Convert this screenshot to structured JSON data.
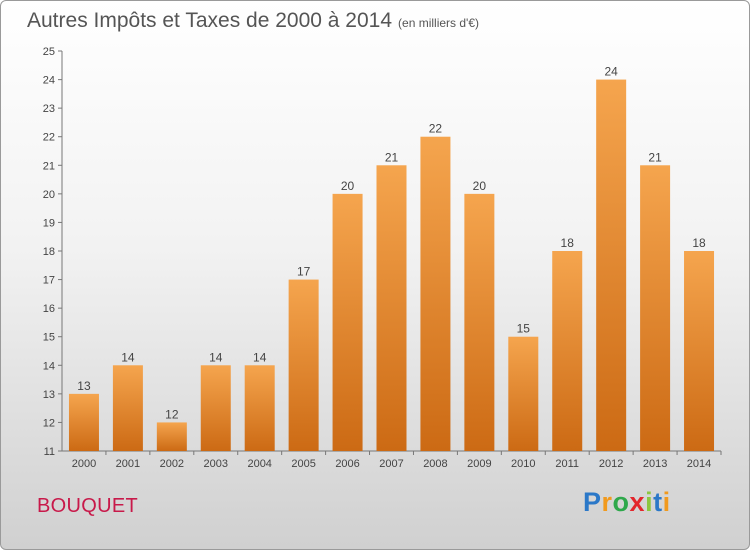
{
  "title": "Autres Impôts et Taxes de 2000 à 2014",
  "subtitle": "(en milliers d'€)",
  "commune": "BOUQUET",
  "logo": {
    "letters": [
      "P",
      "r",
      "o",
      "x",
      "i",
      "t",
      "i"
    ],
    "colors": [
      "#2b78c8",
      "#f19a1e",
      "#2ea84b",
      "#e3262c",
      "#8cc63f",
      "#2b78c8",
      "#f19a1e"
    ]
  },
  "colors": {
    "bar_top": "#f5a54e",
    "bar_bottom": "#cc6a14",
    "commune": "#c8194a"
  },
  "chart_data": {
    "type": "bar",
    "categories": [
      "2000",
      "2001",
      "2002",
      "2003",
      "2004",
      "2005",
      "2006",
      "2007",
      "2008",
      "2009",
      "2010",
      "2011",
      "2012",
      "2013",
      "2014"
    ],
    "values": [
      13,
      14,
      12,
      14,
      14,
      17,
      20,
      21,
      22,
      20,
      15,
      18,
      24,
      21,
      18
    ],
    "ylim": [
      11,
      25
    ],
    "yticks": [
      11,
      12,
      13,
      14,
      15,
      16,
      17,
      18,
      19,
      20,
      21,
      22,
      23,
      24,
      25
    ],
    "grid": false
  }
}
